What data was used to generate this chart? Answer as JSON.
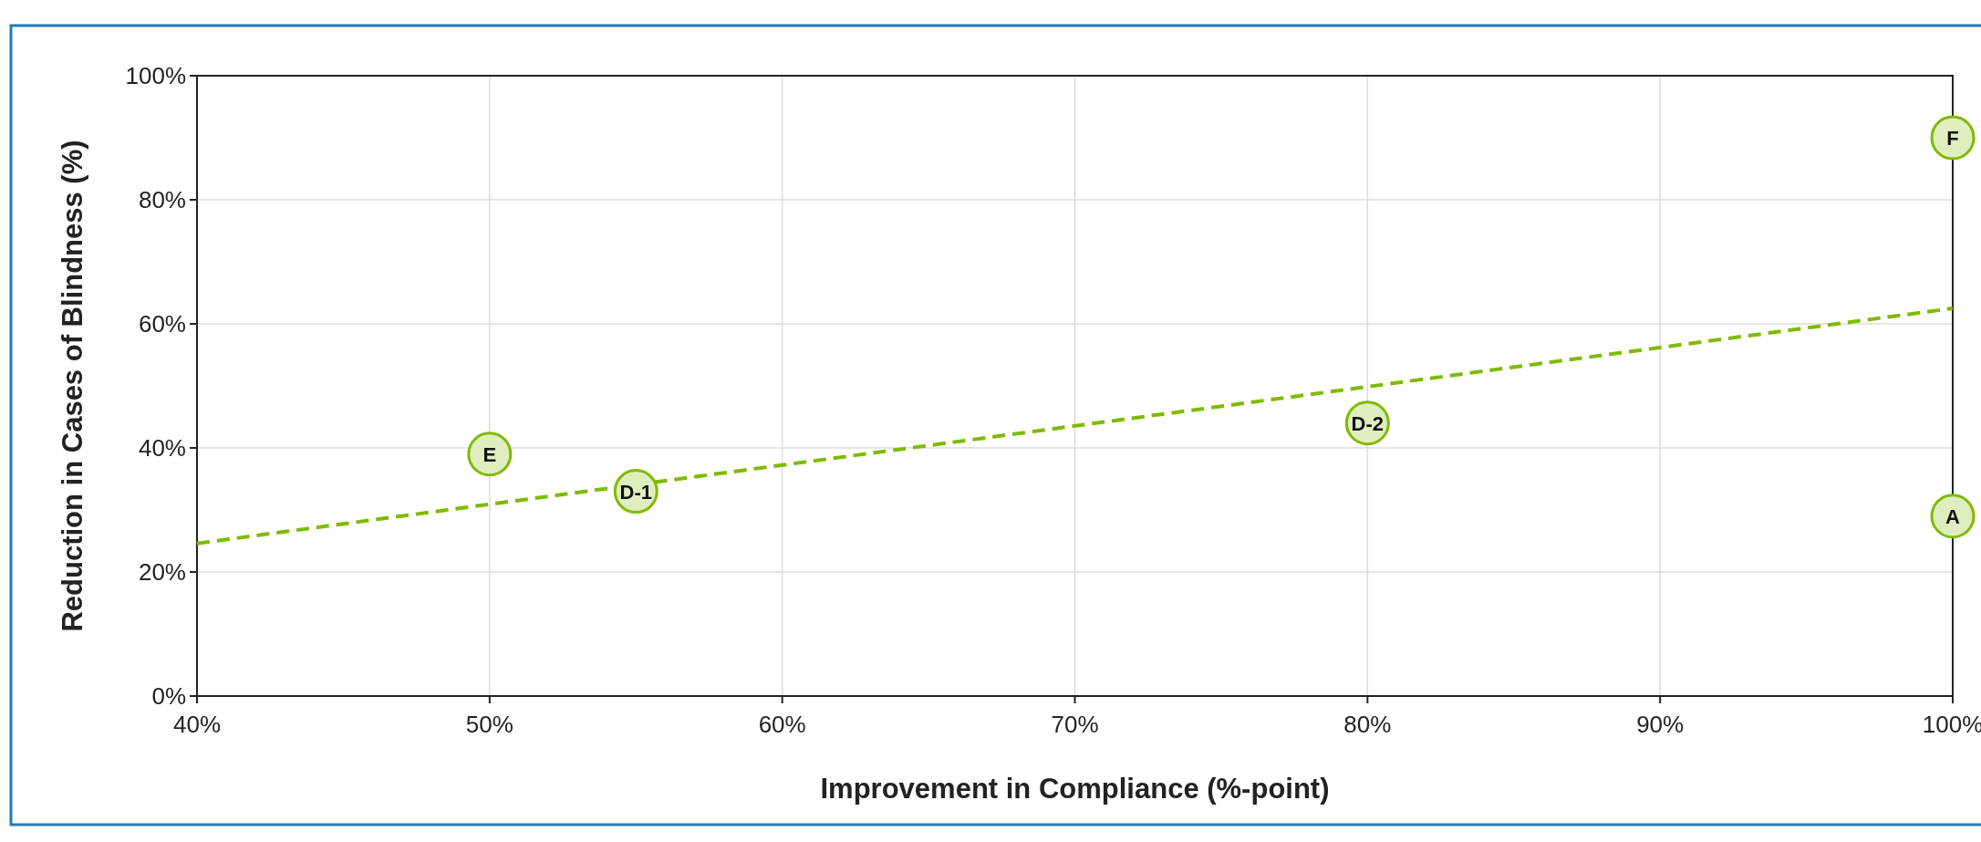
{
  "chart_data": {
    "type": "scatter",
    "xlabel": "Improvement in Compliance (%-point)",
    "ylabel": "Reduction in Cases of Blindness (%)",
    "xlim": [
      40,
      100
    ],
    "xticks": [
      {
        "value": 40,
        "label": "40%"
      },
      {
        "value": 50,
        "label": "50%"
      },
      {
        "value": 60,
        "label": "60%"
      },
      {
        "value": 70,
        "label": "70%"
      },
      {
        "value": 80,
        "label": "80%"
      },
      {
        "value": 90,
        "label": "90%"
      },
      {
        "value": 100,
        "label": "100%"
      }
    ],
    "ylim": [
      0,
      100
    ],
    "yticks": [
      {
        "value": 0,
        "label": "0%"
      },
      {
        "value": 20,
        "label": "20%"
      },
      {
        "value": 40,
        "label": "40%"
      },
      {
        "value": 60,
        "label": "60%"
      },
      {
        "value": 80,
        "label": "80%"
      },
      {
        "value": 100,
        "label": "100%"
      }
    ],
    "grid": true,
    "series": [
      {
        "color": "#7fba00",
        "marker": "circle",
        "x": [
          50,
          55,
          80,
          100,
          100
        ],
        "values": [
          39,
          33,
          44,
          90,
          29
        ]
      },
      {
        "type": "line",
        "color": "#7fba00",
        "line_style": "dashed",
        "marker": "none",
        "x": [
          40,
          100
        ],
        "values": [
          24.6,
          62.5
        ]
      }
    ],
    "annotations": [
      {
        "text": "E",
        "x": 50,
        "y": 39
      },
      {
        "text": "D-1",
        "x": 55,
        "y": 33
      },
      {
        "text": "D-2",
        "x": 80,
        "y": 44
      },
      {
        "text": "F",
        "x": 100,
        "y": 90
      },
      {
        "text": "A",
        "x": 100,
        "y": 29
      }
    ]
  }
}
